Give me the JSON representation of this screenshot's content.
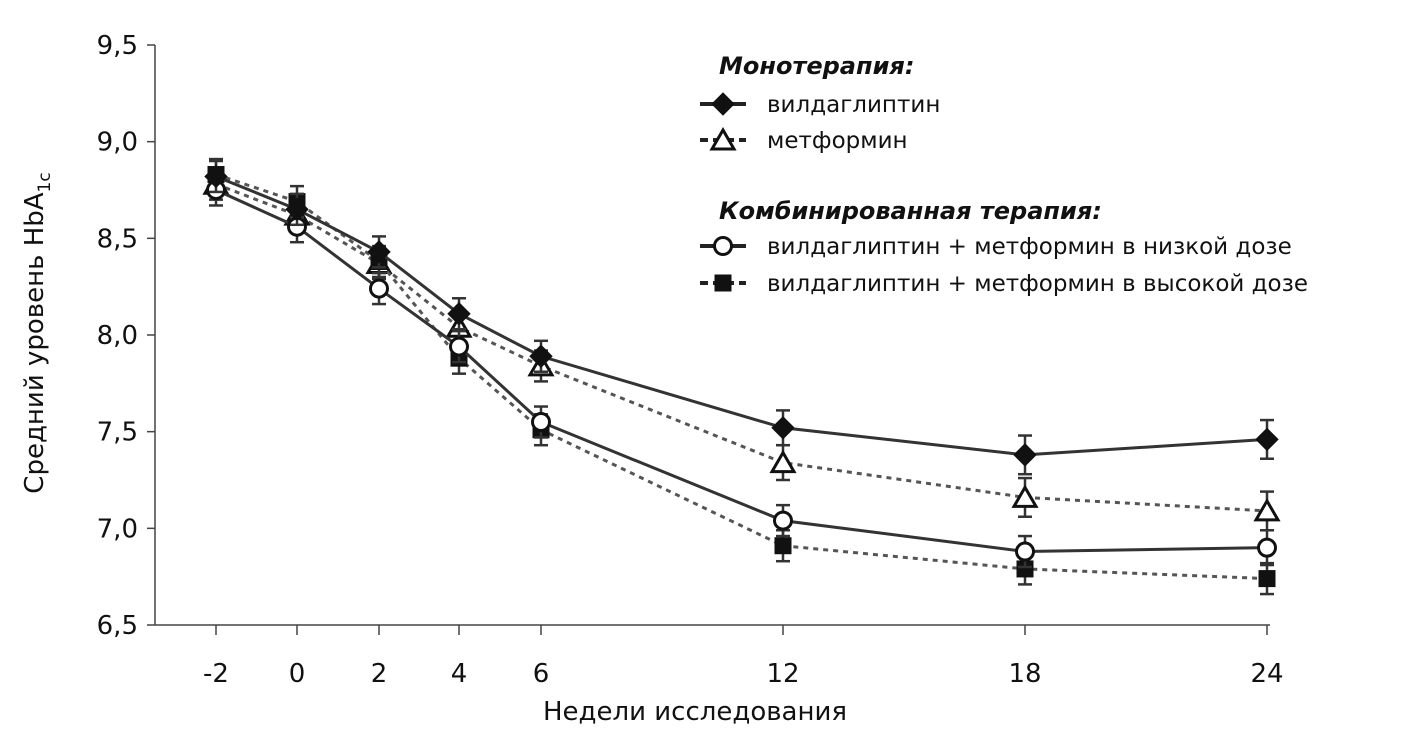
{
  "chart_data": {
    "type": "line",
    "xlabel": "Недели исследования",
    "ylabel": "Средний уровень HbA",
    "ylabel_subscript": "1c",
    "x": [
      -2,
      0,
      2,
      4,
      6,
      12,
      18,
      24
    ],
    "x_tick_labels": [
      "-2",
      "0",
      "2",
      "4",
      "6",
      "12",
      "18",
      "24"
    ],
    "y_ticks": [
      6.5,
      7.0,
      7.5,
      8.0,
      8.5,
      9.0,
      9.5
    ],
    "y_tick_labels": [
      "6,5",
      "7,0",
      "7,5",
      "8,0",
      "8,5",
      "9,0",
      "9,5"
    ],
    "ylim": [
      6.5,
      9.5
    ],
    "x_scale": "categorical (even spacing for -2..6, wider spacing for 12, 18, 24)",
    "grid": false,
    "legend": {
      "placement": "top-right",
      "groups": [
        {
          "title": "Монотерапия:",
          "series_indexes": [
            0,
            1
          ]
        },
        {
          "title": "Комбинированная терапия:",
          "series_indexes": [
            2,
            3
          ]
        }
      ]
    },
    "series": [
      {
        "name": "вилдаглиптин",
        "marker": "filled-diamond",
        "line": "solid",
        "values": [
          8.82,
          8.65,
          8.43,
          8.11,
          7.89,
          7.52,
          7.38,
          7.46
        ],
        "error": [
          0.08,
          0.08,
          0.08,
          0.08,
          0.08,
          0.09,
          0.1,
          0.1
        ]
      },
      {
        "name": "метформин",
        "marker": "open-triangle",
        "line": "dotted",
        "values": [
          8.78,
          8.62,
          8.37,
          8.04,
          7.84,
          7.34,
          7.16,
          7.09
        ],
        "error": [
          0.08,
          0.08,
          0.08,
          0.08,
          0.08,
          0.09,
          0.1,
          0.1
        ]
      },
      {
        "name": "вилдаглиптин + метформин в низкой дозе",
        "marker": "open-circle",
        "line": "solid",
        "values": [
          8.75,
          8.56,
          8.24,
          7.94,
          7.55,
          7.04,
          6.88,
          6.9
        ],
        "error": [
          0.08,
          0.08,
          0.08,
          0.08,
          0.08,
          0.08,
          0.08,
          0.09
        ]
      },
      {
        "name": "вилдаглиптин + метформин в высокой дозе",
        "marker": "filled-square",
        "line": "dotted",
        "values": [
          8.83,
          8.69,
          8.38,
          7.88,
          7.51,
          6.91,
          6.79,
          6.74
        ],
        "error": [
          0.08,
          0.08,
          0.08,
          0.08,
          0.08,
          0.08,
          0.08,
          0.08
        ]
      }
    ]
  }
}
